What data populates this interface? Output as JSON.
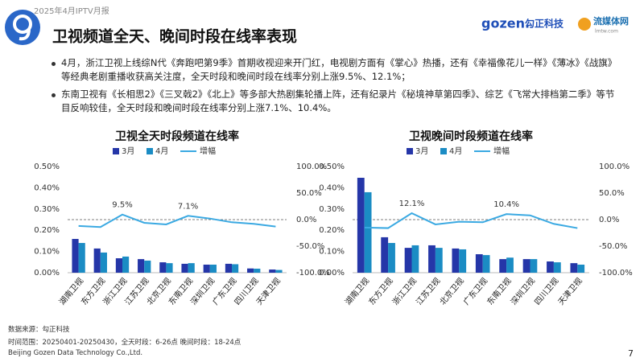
{
  "header": {
    "report": "2025年4月IPTV月报",
    "title": "卫视频道全天、晚间时段在线率表现",
    "logo_brand": "gozen.",
    "logo_cn": "勾正科技",
    "logo2_cn": "流媒体网",
    "logo2_url": "lmtw.com"
  },
  "bullets": [
    "4月，浙江卫视上线综N代《奔跑吧第9季》首期收视迎来开门红，电视剧方面有《掌心》热播，还有《幸福像花儿一样》《薄冰》《战旗》等经典老剧重播收获高关注度，全天时段和晚间时段在线率分别上涨9.5%、12.1%；",
    "东南卫视有《长相思2》《三叉戟2》《北上》等多部大热剧集轮播上阵，还有纪录片《秘境神草第四季》、综艺《飞常大排档第二季》等节目反响较佳，全天时段和晚间时段在线率分别上涨7.1%、10.4%。"
  ],
  "chart_data": [
    {
      "type": "combo",
      "title": "卫视全天时段频道在线率",
      "categories": [
        "湖南卫视",
        "东方卫视",
        "浙江卫视",
        "江苏卫视",
        "北京卫视",
        "东南卫视",
        "深圳卫视",
        "广东卫视",
        "四川卫视",
        "天津卫视"
      ],
      "series": [
        {
          "name": "3月",
          "color": "#2536a8",
          "values": [
            0.159,
            0.114,
            0.068,
            0.064,
            0.049,
            0.042,
            0.038,
            0.042,
            0.02,
            0.015
          ]
        },
        {
          "name": "4月",
          "color": "#1b8cc4",
          "values": [
            0.14,
            0.095,
            0.076,
            0.057,
            0.045,
            0.045,
            0.038,
            0.04,
            0.019,
            0.013
          ]
        },
        {
          "name": "增幅",
          "color": "#3aa9e2",
          "axis": "y2",
          "values": [
            -12,
            -14,
            9.5,
            -6,
            -9,
            7.1,
            2,
            -5,
            -8,
            -13
          ],
          "value_labels": [
            null,
            null,
            "9.5%",
            null,
            null,
            "7.1%",
            null,
            null,
            null,
            null
          ]
        }
      ],
      "ylim": [
        0,
        0.5
      ],
      "yticks": [
        {
          "value": 0,
          "label": "0.00%"
        },
        {
          "value": 0.1,
          "label": "0.10%"
        },
        {
          "value": 0.2,
          "label": "0.20%"
        },
        {
          "value": 0.3,
          "label": "0.30%"
        },
        {
          "value": 0.4,
          "label": "0.40%"
        },
        {
          "value": 0.5,
          "label": "0.50%"
        }
      ],
      "y2lim": [
        -100,
        100
      ],
      "y2ticks": [
        {
          "value": -100,
          "label": "-100.0%"
        },
        {
          "value": -50,
          "label": "-50.0%"
        },
        {
          "value": 0,
          "label": "0.0%"
        },
        {
          "value": 50,
          "label": "50.0%"
        },
        {
          "value": 100,
          "label": "100.0%"
        }
      ],
      "grid": false
    },
    {
      "type": "combo",
      "title": "卫视晚间时段频道在线率",
      "categories": [
        "湖南卫视",
        "东方卫视",
        "浙江卫视",
        "江苏卫视",
        "北京卫视",
        "广东卫视",
        "东南卫视",
        "深圳卫视",
        "四川卫视",
        "天津卫视"
      ],
      "series": [
        {
          "name": "3月",
          "color": "#2536a8",
          "values": [
            0.447,
            0.167,
            0.117,
            0.129,
            0.114,
            0.087,
            0.064,
            0.064,
            0.053,
            0.045
          ]
        },
        {
          "name": "4月",
          "color": "#1b8cc4",
          "values": [
            0.379,
            0.14,
            0.129,
            0.117,
            0.11,
            0.083,
            0.071,
            0.064,
            0.049,
            0.038
          ]
        },
        {
          "name": "增幅",
          "color": "#3aa9e2",
          "axis": "y2",
          "values": [
            -15,
            -16,
            12.1,
            -9,
            -4,
            -5,
            10.4,
            8,
            -8,
            -16
          ],
          "value_labels": [
            null,
            null,
            "12.1%",
            null,
            null,
            null,
            "10.4%",
            null,
            null,
            null
          ]
        }
      ],
      "ylim": [
        0,
        0.5
      ],
      "yticks": [
        {
          "value": 0,
          "label": "0.00%"
        },
        {
          "value": 0.1,
          "label": "0.10%"
        },
        {
          "value": 0.2,
          "label": "0.20%"
        },
        {
          "value": 0.3,
          "label": "0.30%"
        },
        {
          "value": 0.4,
          "label": "0.40%"
        },
        {
          "value": 0.5,
          "label": "0.50%"
        }
      ],
      "y2lim": [
        -100,
        100
      ],
      "y2ticks": [
        {
          "value": -100,
          "label": "-100.0%"
        },
        {
          "value": -50,
          "label": "-50.0%"
        },
        {
          "value": 0,
          "label": "0.0%"
        },
        {
          "value": 50,
          "label": "50.0%"
        },
        {
          "value": 100,
          "label": "100.0%"
        }
      ],
      "grid": false
    }
  ],
  "footer": {
    "source": "数据来源：勾正科技",
    "range": "时间范围：20250401-20250430，全天时段：6-26点  晚间时段：18-24点",
    "company": "Beijing Gozen Data Technology Co.,Ltd.",
    "page": "7"
  }
}
